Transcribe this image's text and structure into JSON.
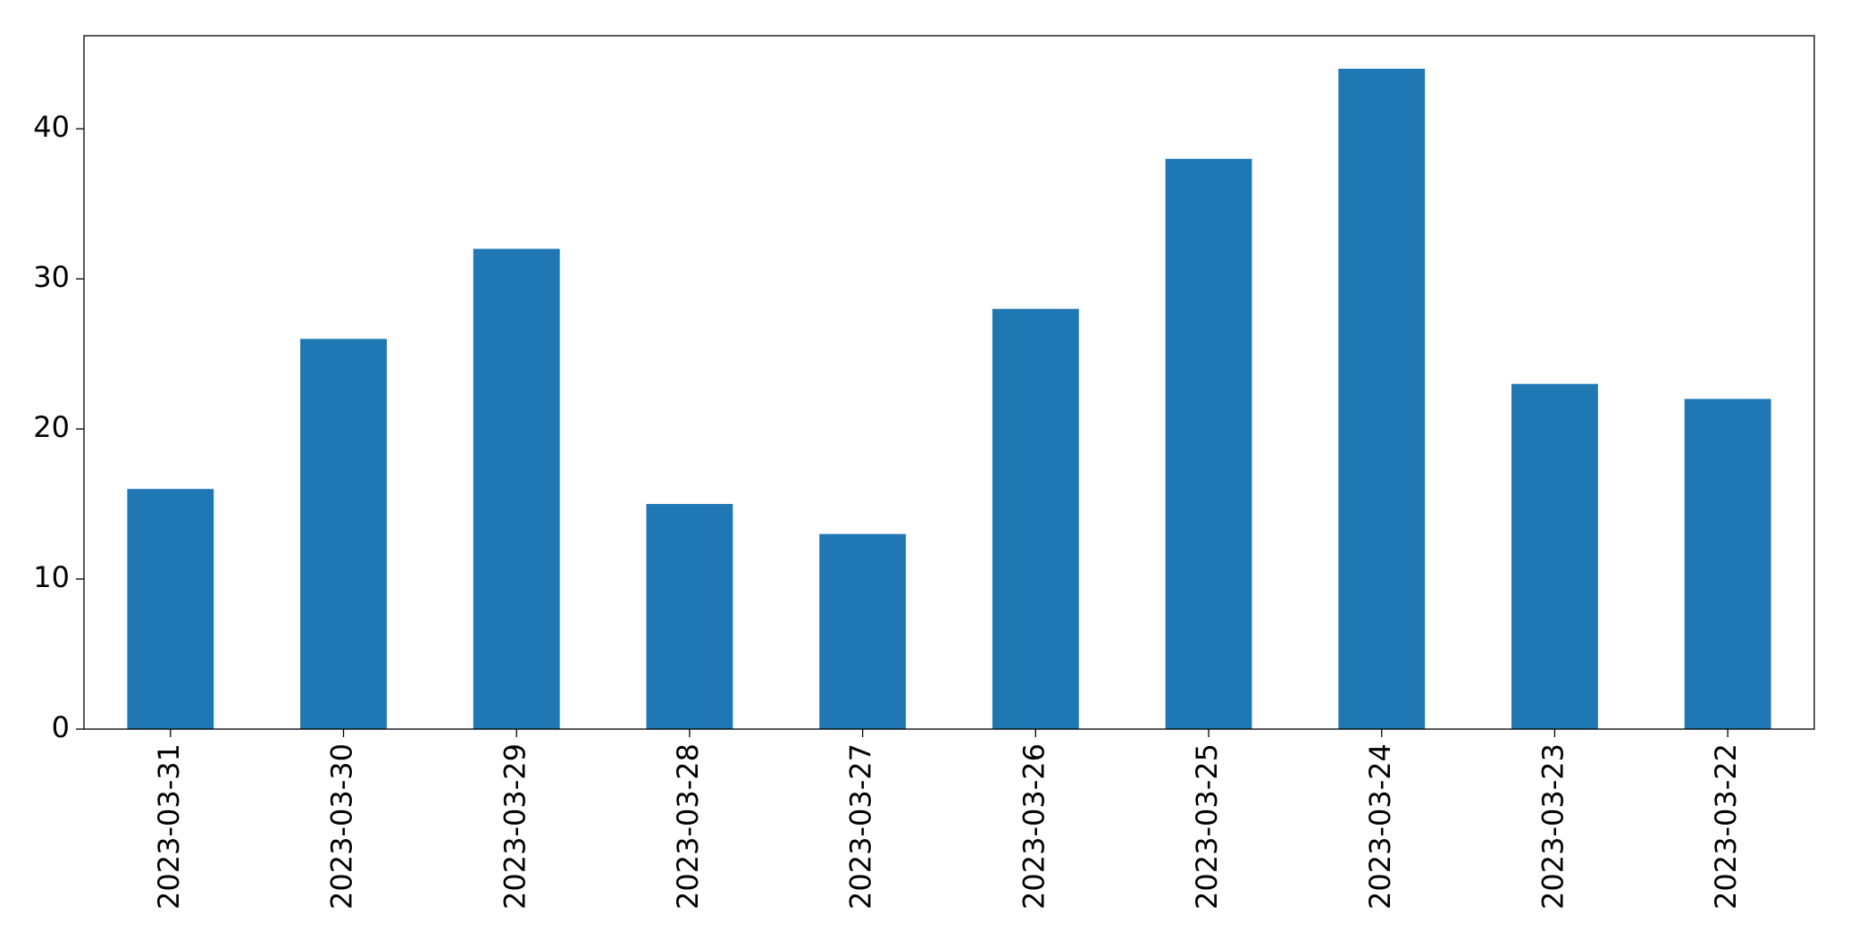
{
  "chart_data": {
    "type": "bar",
    "categories": [
      "2023-03-31",
      "2023-03-30",
      "2023-03-29",
      "2023-03-28",
      "2023-03-27",
      "2023-03-26",
      "2023-03-25",
      "2023-03-24",
      "2023-03-23",
      "2023-03-22"
    ],
    "values": [
      16,
      26,
      32,
      15,
      13,
      28,
      38,
      44,
      23,
      22
    ],
    "color": "#1f77b4",
    "ylim": [
      0,
      46.2
    ],
    "yticks": [
      0,
      10,
      20,
      30,
      40
    ],
    "grid": false
  }
}
